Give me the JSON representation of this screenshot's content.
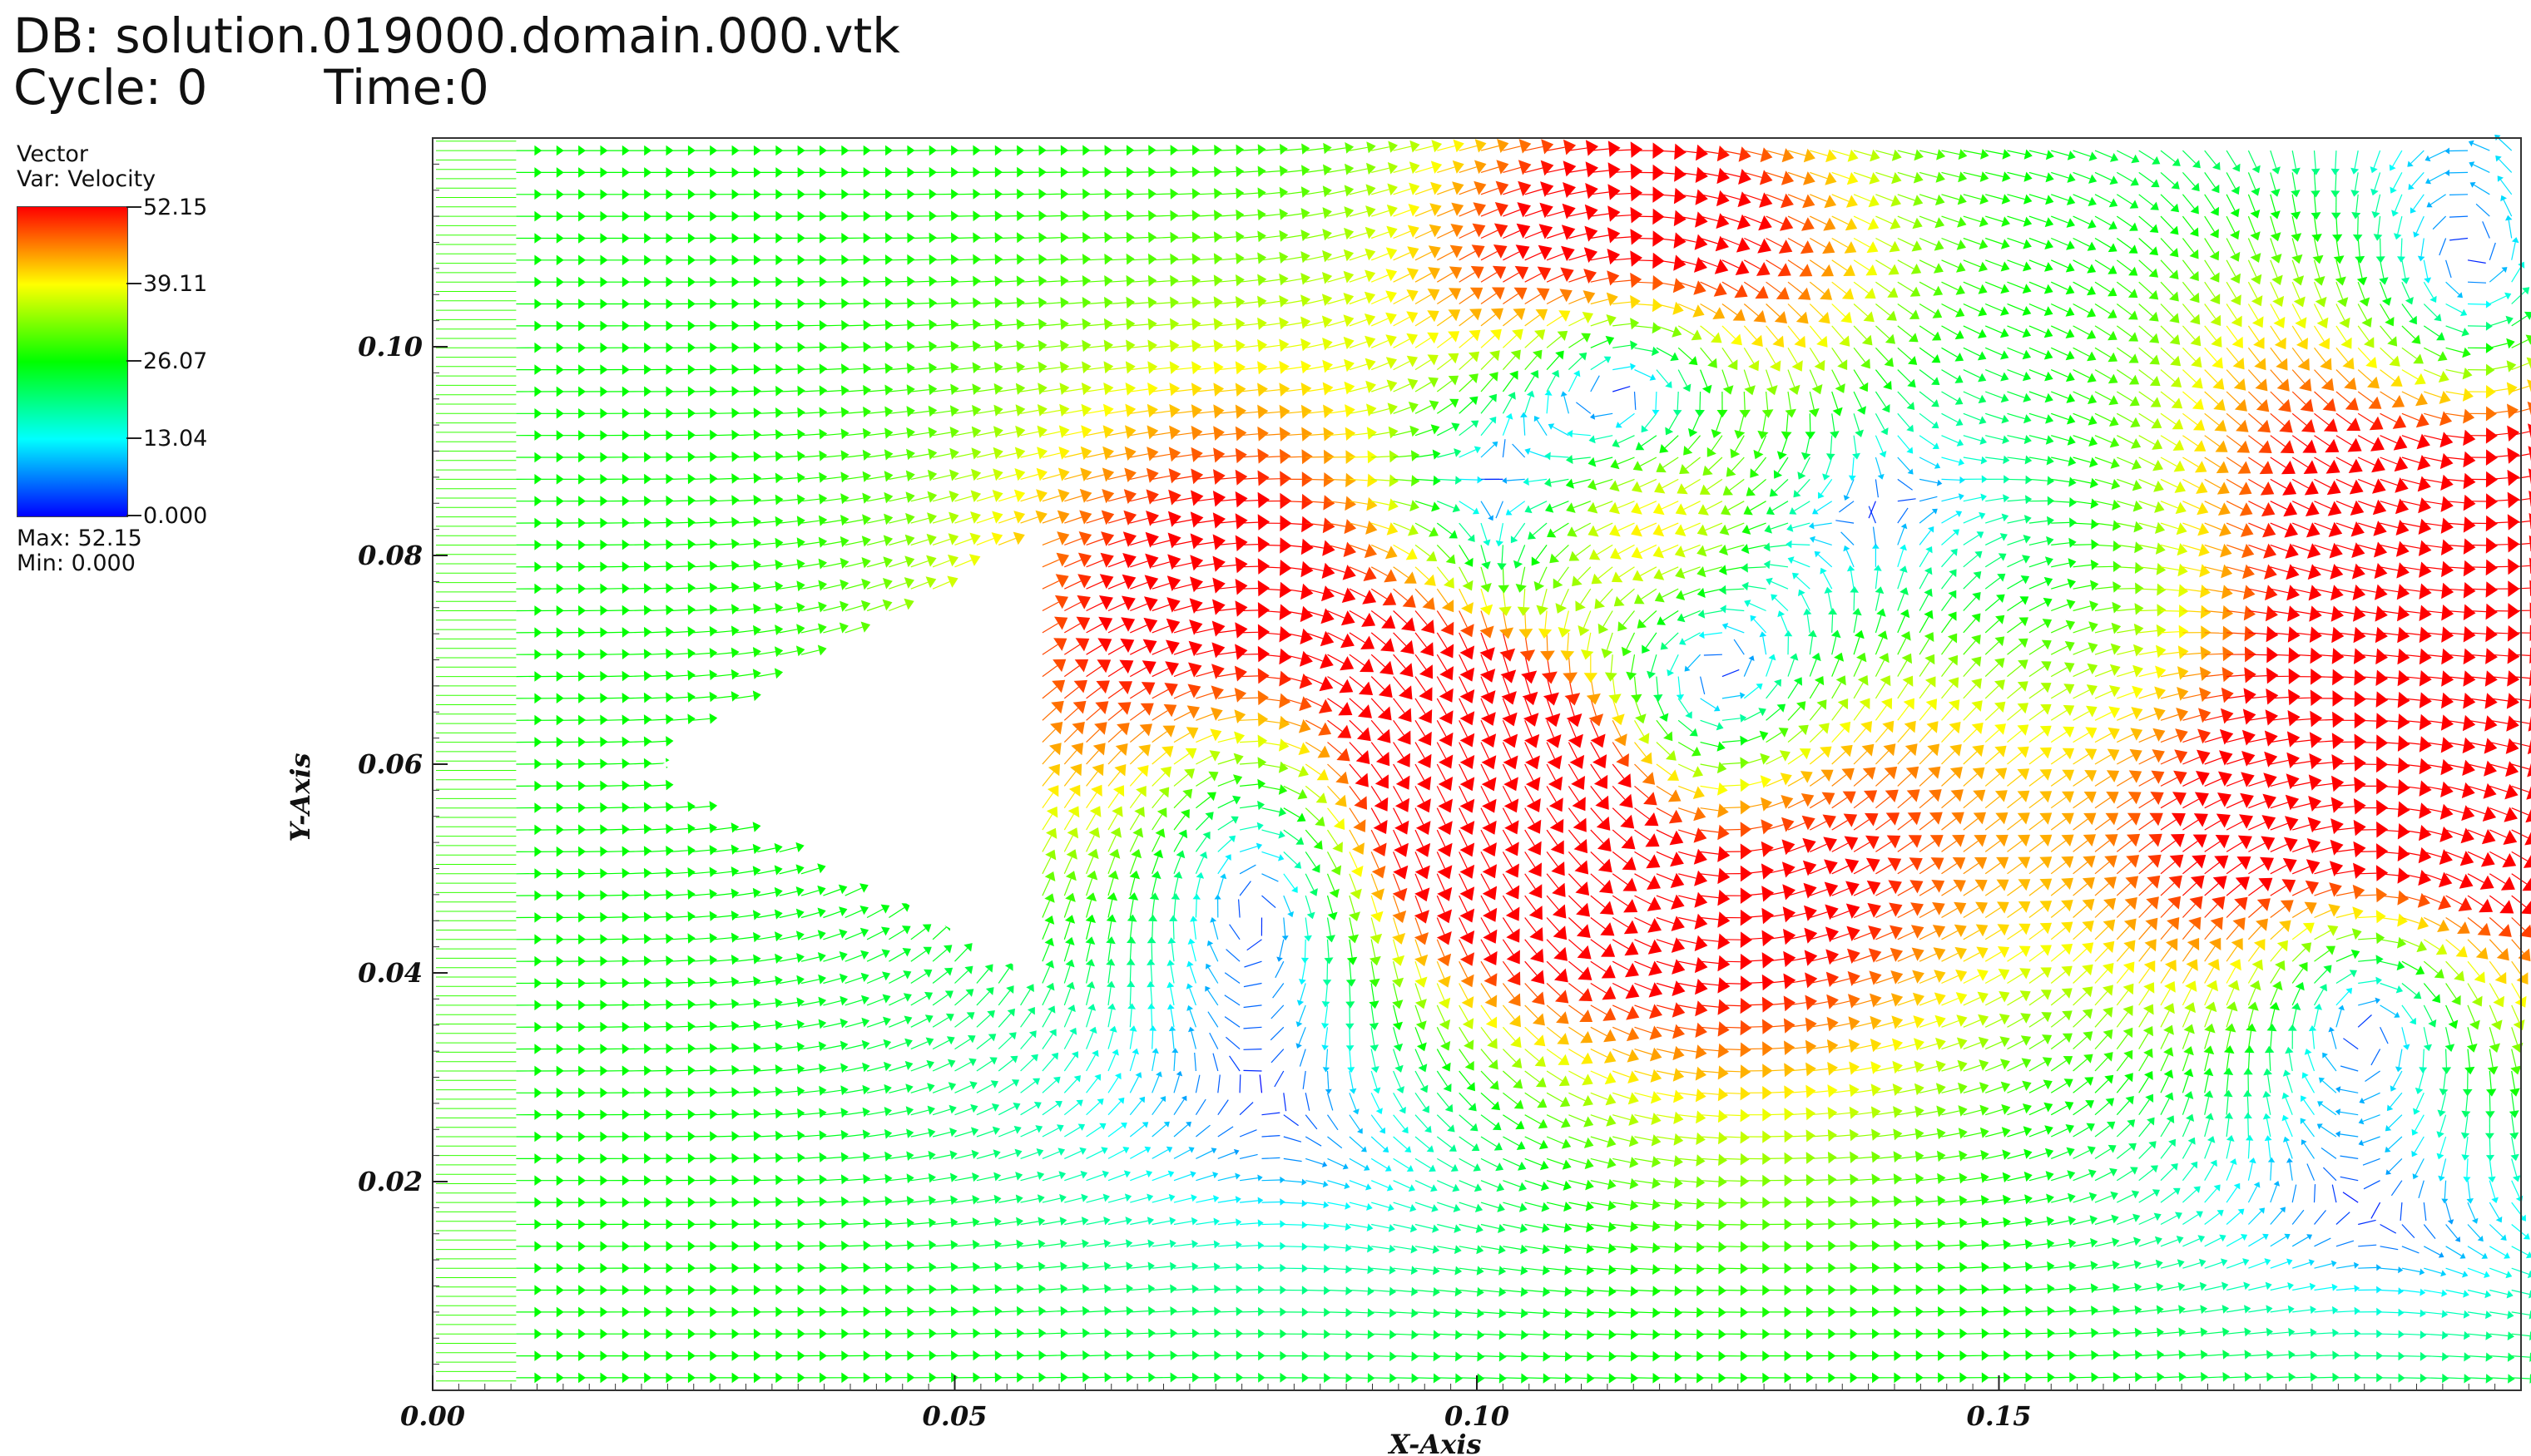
{
  "header": {
    "db_label": "DB: solution.019000.domain.000.vtk",
    "cycle_label": "Cycle: 0",
    "time_label": "Time:0"
  },
  "legend": {
    "title": "Vector",
    "var_label": "Var: Velocity",
    "ticks": [
      "52.15",
      "39.11",
      "26.07",
      "13.04",
      "0.000"
    ],
    "max_label": "Max:  52.15",
    "min_label": "Min:  0.000",
    "colormap": [
      "#0000ff",
      "#00ffff",
      "#00ff00",
      "#ffff00",
      "#ff0000"
    ]
  },
  "chart_data": {
    "type": "vector-field",
    "title": "",
    "xlabel": "X-Axis",
    "ylabel": "Y-Axis",
    "xlim": [
      0.0,
      0.2
    ],
    "ylim": [
      0.0,
      0.12
    ],
    "x_ticks": [
      "0.00",
      "0.05",
      "0.10",
      "0.15"
    ],
    "x_tick_values": [
      0.0,
      0.05,
      0.1,
      0.15
    ],
    "y_ticks": [
      "0.02",
      "0.04",
      "0.06",
      "0.08",
      "0.10"
    ],
    "y_tick_values": [
      0.02,
      0.04,
      0.06,
      0.08,
      0.1
    ],
    "variable": "Velocity",
    "value_range": [
      0.0,
      52.15
    ],
    "obstacle": {
      "shape": "triangle",
      "apex": [
        0.022,
        0.06
      ],
      "base_x": 0.057,
      "base_y": [
        0.04,
        0.08
      ]
    },
    "vortices": [
      {
        "x": 0.082,
        "y": 0.058,
        "r": 0.028,
        "spin": -1
      },
      {
        "x": 0.118,
        "y": 0.063,
        "r": 0.026,
        "spin": 1
      },
      {
        "x": 0.115,
        "y": 0.098,
        "r": 0.02,
        "spin": -1
      },
      {
        "x": 0.195,
        "y": 0.1,
        "r": 0.025,
        "spin": 1
      },
      {
        "x": 0.185,
        "y": 0.042,
        "r": 0.022,
        "spin": -1
      }
    ],
    "inflow_speed": 26
  }
}
